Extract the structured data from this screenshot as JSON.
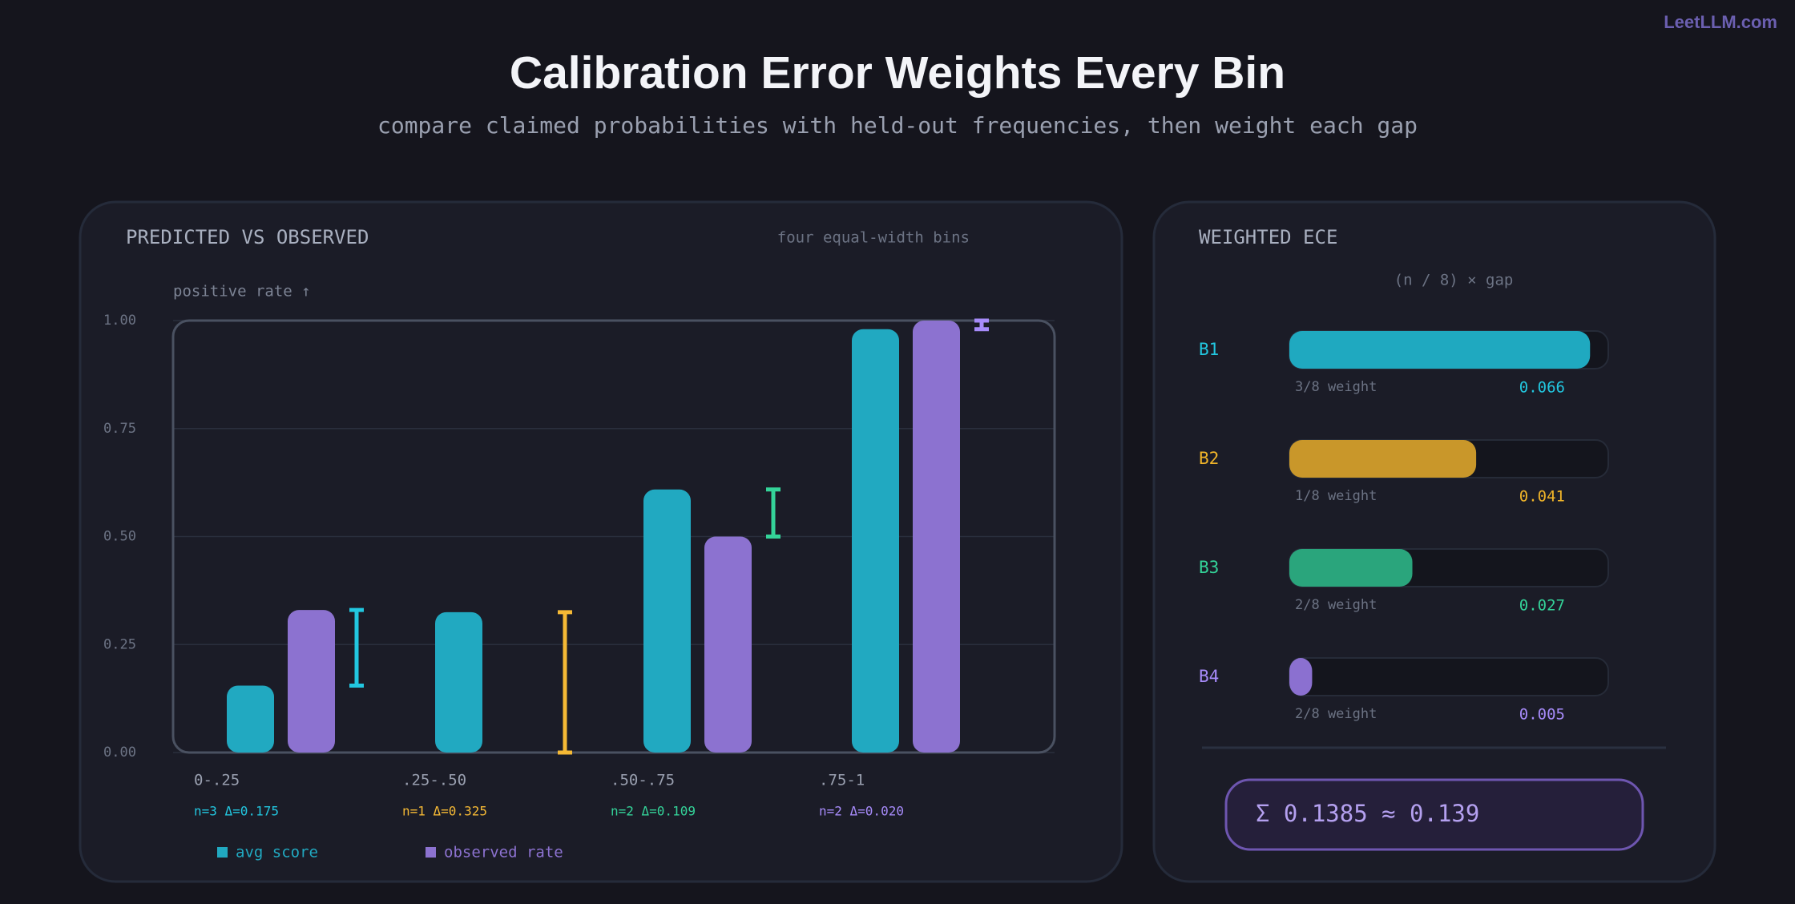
{
  "brand": "LeetLLM.com",
  "title": "Calibration Error Weights Every Bin",
  "subtitle": "compare claimed probabilities with held-out frequencies, then weight each gap",
  "chart_data": [
    {
      "type": "bar",
      "title": "PREDICTED VS OBSERVED",
      "subtitle": "four equal-width bins",
      "y_label": "positive rate ↑",
      "categories": [
        "0-.25",
        ".25-.50",
        ".50-.75",
        ".75-1"
      ],
      "category_notes": [
        "n=3 Δ=0.175",
        "n=1 Δ=0.325",
        "n=2 Δ=0.109",
        "n=2 Δ=0.020"
      ],
      "bin_colors": [
        "#22c7e0",
        "#f5b935",
        "#34d399",
        "#a78bfa"
      ],
      "series": [
        {
          "name": "avg score",
          "color": "#21a9c1",
          "values": [
            0.155,
            0.325,
            0.609,
            0.98
          ]
        },
        {
          "name": "observed rate",
          "color": "#8c72d0",
          "values": [
            0.33,
            0,
            0.5,
            1.0
          ]
        }
      ],
      "ylim": [
        0,
        1
      ],
      "yticks": [
        {
          "value": 0,
          "label": "0.00"
        },
        {
          "value": 0.25,
          "label": "0.25"
        },
        {
          "value": 0.5,
          "label": "0.50"
        },
        {
          "value": 0.75,
          "label": "0.75"
        },
        {
          "value": 1,
          "label": "1.00"
        }
      ],
      "grid": true
    },
    {
      "type": "hbar",
      "title": "WEIGHTED ECE",
      "subtitle": "(n / 8) × gap",
      "categories": [
        "B1",
        "B2",
        "B3",
        "B4"
      ],
      "weights": [
        "3/8 weight",
        "1/8 weight",
        "2/8 weight",
        "2/8 weight"
      ],
      "values": [
        0.066,
        0.041,
        0.027,
        0.005
      ],
      "colors": [
        "#1fa9c0",
        "#c9972a",
        "#2aa57c",
        "#8b70d0"
      ],
      "label_colors": [
        "#22c7e0",
        "#f0b429",
        "#34d399",
        "#a78bfa"
      ],
      "xlim": [
        0,
        0.07
      ],
      "summary": "Σ 0.1385 ≈ 0.139"
    }
  ]
}
